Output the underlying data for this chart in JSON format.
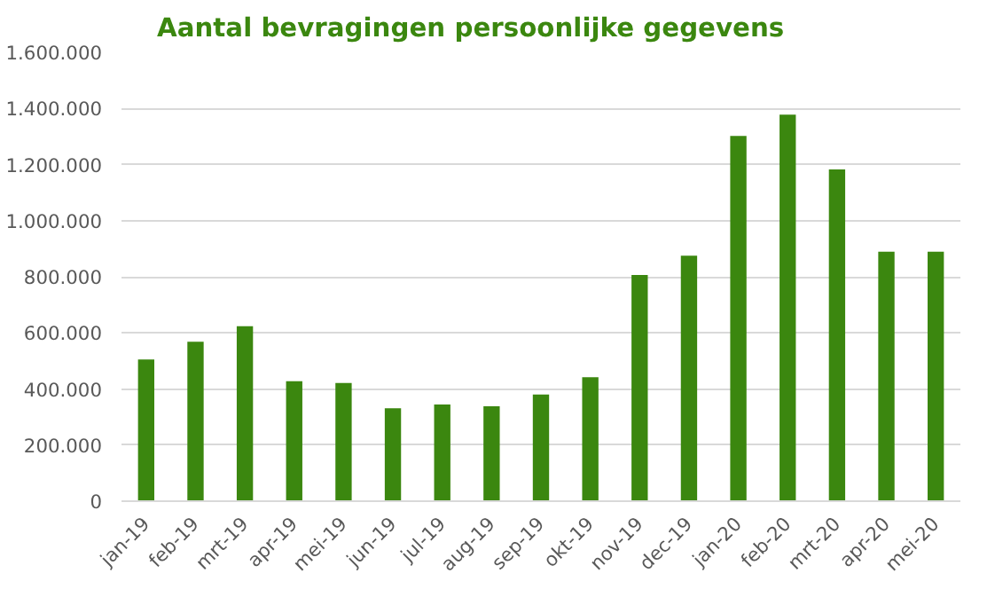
{
  "chart_data": {
    "type": "bar",
    "title": "Aantal bevragingen persoonlijke gegevens",
    "categories": [
      "jan-19",
      "feb-19",
      "mrt-19",
      "apr-19",
      "mei-19",
      "jun-19",
      "jul-19",
      "aug-19",
      "sep-19",
      "okt-19",
      "nov-19",
      "dec-19",
      "jan-20",
      "feb-20",
      "mrt-20",
      "apr-20",
      "mei-20"
    ],
    "values": [
      505000,
      568000,
      624000,
      428000,
      421000,
      331000,
      345000,
      338000,
      380000,
      442000,
      806000,
      875000,
      1302000,
      1378000,
      1183000,
      889000,
      889000
    ],
    "color": "#3b870f",
    "ylim": [
      0,
      1600000
    ],
    "yticks": [
      0,
      {
        "value": 200000,
        "label": "200.000"
      },
      {
        "value": 400000,
        "label": "400.000"
      },
      {
        "value": 600000,
        "label": "600.000"
      },
      {
        "value": 800000,
        "label": "800.000"
      },
      {
        "value": 1000000,
        "label": "1.000.000"
      },
      {
        "value": 1200000,
        "label": "1.200.000"
      },
      {
        "value": 1400000,
        "label": "1.400.000"
      },
      {
        "value": 1600000,
        "label": "1.600.000"
      }
    ],
    "grid": "y"
  }
}
